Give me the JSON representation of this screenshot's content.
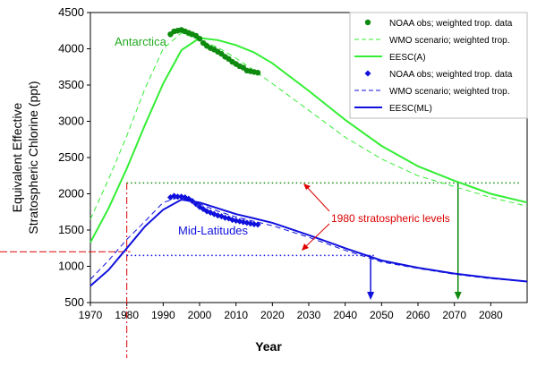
{
  "chart_data": {
    "type": "line",
    "ylabel_line1": "Equivalent Effective",
    "ylabel_line2": "Stratospheric Chlorine (ppt)",
    "xlabel": "Year",
    "xlim": [
      1970,
      2090
    ],
    "ylim": [
      500,
      4500
    ],
    "xticks": [
      1970,
      1980,
      1990,
      2000,
      2010,
      2020,
      2030,
      2040,
      2050,
      2060,
      2070,
      2080
    ],
    "yticks": [
      500,
      1000,
      1500,
      2000,
      2500,
      3000,
      3500,
      4000,
      4500
    ],
    "grid": false,
    "legend_position": "top-right",
    "colors": {
      "antarctic_obs": "#0e8a0e",
      "antarctic_line": "#33ee33",
      "midlat": "#1010dd",
      "reference": "#dd0000"
    },
    "annotations": {
      "antarctica": "Antarctica",
      "midlatitudes": "Mid-Latitudes",
      "reference_levels": "1980 stratospheric levels"
    },
    "legend": [
      {
        "label": "NOAA obs; weighted trop. data",
        "style": "dot",
        "color": "#0e8a0e"
      },
      {
        "label": "WMO scenario; weighted trop.",
        "style": "dashed",
        "color": "#33ee33"
      },
      {
        "label": "EESC(A)",
        "style": "solid",
        "color": "#33ee33"
      },
      {
        "label": "NOAA obs; weighted trop. data",
        "style": "diamond",
        "color": "#1010dd"
      },
      {
        "label": "WMO scenario; weighted trop.",
        "style": "dashed",
        "color": "#1010dd"
      },
      {
        "label": "EESC(ML)",
        "style": "solid",
        "color": "#1010dd"
      }
    ],
    "reference": {
      "year_1980": 1980,
      "antarctic_1980_level": 2150,
      "midlat_1980_level": 1150,
      "antarctic_return_year": 2071,
      "midlat_return_year": 2047,
      "level_crossing_value": 1200
    },
    "series": [
      {
        "name": "EESC(A)",
        "style": "solid",
        "color": "#33ee33",
        "x": [
          1970,
          1975,
          1980,
          1985,
          1990,
          1995,
          2000,
          2005,
          2010,
          2015,
          2020,
          2030,
          2040,
          2050,
          2060,
          2070,
          2080,
          2090
        ],
        "y": [
          1330,
          1800,
          2350,
          2950,
          3520,
          3980,
          4150,
          4120,
          4050,
          3950,
          3800,
          3420,
          3020,
          2660,
          2380,
          2180,
          2000,
          1880
        ]
      },
      {
        "name": "WMO scenario; weighted trop.",
        "style": "dashed",
        "color": "#33ee33",
        "x": [
          1970,
          1975,
          1980,
          1985,
          1990,
          1995,
          2000,
          2005,
          2010,
          2015,
          2020,
          2030,
          2040,
          2050,
          2060,
          2070,
          2080,
          2090
        ],
        "y": [
          1650,
          2200,
          2800,
          3450,
          4000,
          4220,
          4120,
          4020,
          3870,
          3700,
          3520,
          3150,
          2780,
          2480,
          2250,
          2100,
          1950,
          1830
        ]
      },
      {
        "name": "NOAA obs; weighted trop. data",
        "style": "dots",
        "color": "#0e8a0e",
        "x": [
          1992,
          1993,
          1994,
          1995,
          1996,
          1997,
          1998,
          1999,
          2000,
          2001,
          2002,
          2003,
          2004,
          2005,
          2006,
          2007,
          2008,
          2009,
          2010,
          2011,
          2012,
          2013,
          2014,
          2015,
          2016
        ],
        "y": [
          4200,
          4240,
          4250,
          4260,
          4240,
          4220,
          4200,
          4180,
          4140,
          4080,
          4040,
          4010,
          3990,
          3960,
          3930,
          3890,
          3860,
          3820,
          3790,
          3760,
          3740,
          3700,
          3690,
          3680,
          3670
        ]
      },
      {
        "name": "EESC(ML)",
        "style": "solid",
        "color": "#1010dd",
        "x": [
          1970,
          1975,
          1980,
          1985,
          1990,
          1995,
          2000,
          2005,
          2010,
          2015,
          2020,
          2030,
          2040,
          2050,
          2060,
          2070,
          2080,
          2090
        ],
        "y": [
          730,
          950,
          1250,
          1550,
          1780,
          1920,
          1880,
          1800,
          1720,
          1660,
          1600,
          1430,
          1250,
          1080,
          980,
          900,
          840,
          790
        ]
      },
      {
        "name": "WMO scenario; weighted trop.",
        "style": "dashed",
        "color": "#1010dd",
        "x": [
          1970,
          1975,
          1980,
          1985,
          1990,
          1995,
          2000,
          2005,
          2010,
          2015,
          2020,
          2030,
          2040,
          2050,
          2060,
          2070,
          2080,
          2090
        ],
        "y": [
          820,
          1080,
          1370,
          1620,
          1880,
          1960,
          1860,
          1760,
          1680,
          1620,
          1560,
          1400,
          1220,
          1060,
          970,
          890,
          830,
          790
        ]
      },
      {
        "name": "NOAA obs; weighted trop. data",
        "style": "diamonds",
        "color": "#1010dd",
        "x": [
          1992,
          1993,
          1994,
          1995,
          1996,
          1997,
          1998,
          1999,
          2000,
          2001,
          2002,
          2003,
          2004,
          2005,
          2006,
          2007,
          2008,
          2009,
          2010,
          2011,
          2012,
          2013,
          2014,
          2015,
          2016
        ],
        "y": [
          1950,
          1970,
          1960,
          1960,
          1950,
          1930,
          1900,
          1860,
          1820,
          1790,
          1760,
          1740,
          1720,
          1700,
          1690,
          1670,
          1660,
          1640,
          1630,
          1620,
          1610,
          1600,
          1590,
          1580,
          1575
        ]
      }
    ]
  }
}
